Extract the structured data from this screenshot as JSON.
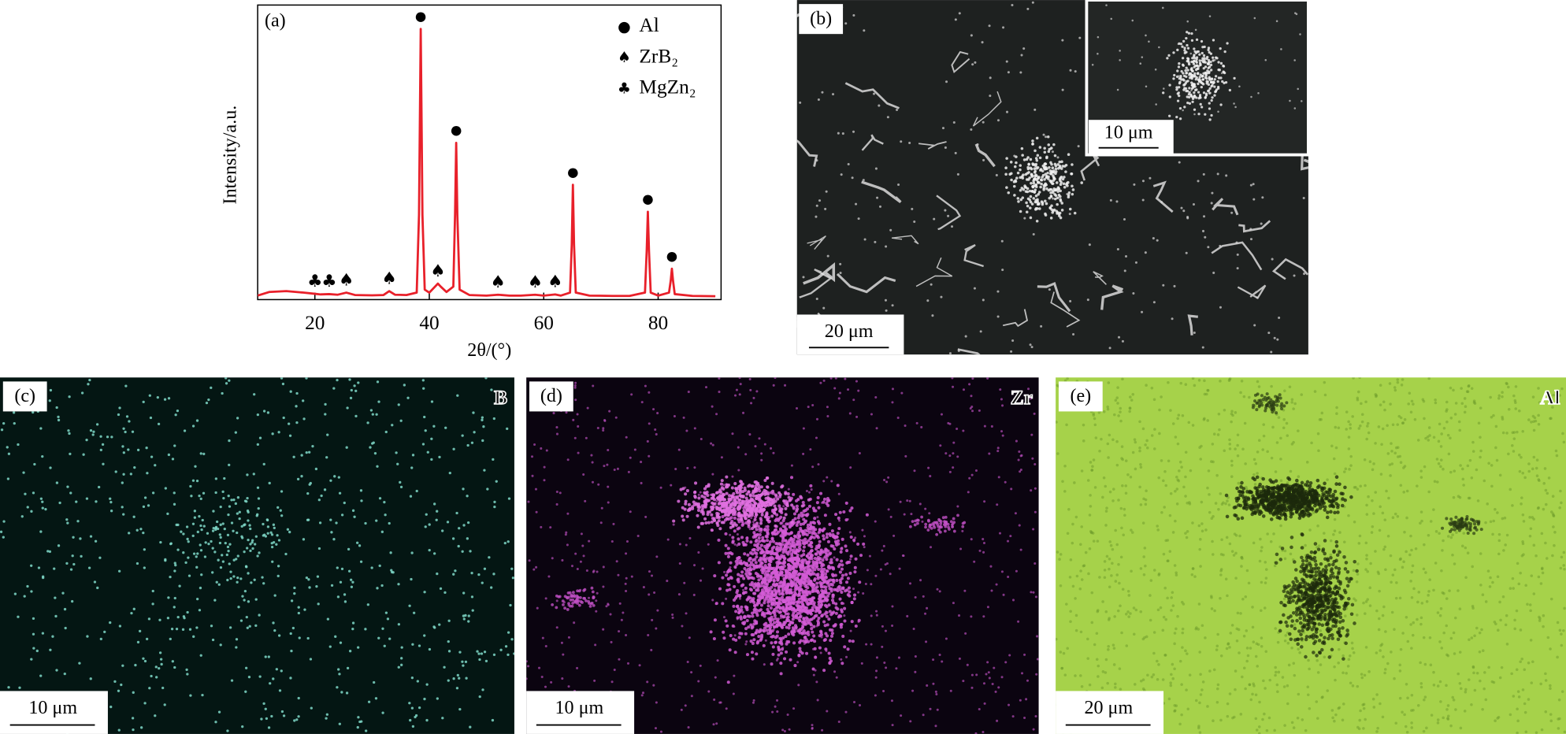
{
  "chart_data": {
    "type": "line",
    "panel_label": "(a)",
    "x_label": "2θ/(°)",
    "y_label": "Intensity/a.u.",
    "x": [
      10,
      12,
      15,
      18,
      20,
      21,
      22.5,
      24,
      25.5,
      27,
      30,
      32,
      33,
      34,
      36,
      37.8,
      38.2,
      38.5,
      38.8,
      39.2,
      40,
      41,
      41.5,
      42,
      43,
      44.2,
      44.5,
      44.7,
      44.9,
      45.3,
      47,
      50,
      52,
      54,
      56,
      58.5,
      60,
      62,
      63,
      64.6,
      64.9,
      65.1,
      65.3,
      65.6,
      68,
      72,
      75,
      77.7,
      78,
      78.2,
      78.4,
      78.7,
      80,
      81.9,
      82.2,
      82.4,
      82.6,
      82.9,
      86,
      90
    ],
    "values": [
      3.0,
      4.2,
      4.5,
      4.0,
      3.6,
      3.4,
      3.5,
      3.3,
      4.0,
      3.2,
      3.1,
      3.2,
      4.5,
      3.3,
      3.2,
      4.0,
      30,
      92,
      30,
      5,
      4.0,
      6.0,
      7.0,
      6.0,
      4.2,
      6,
      30,
      54,
      30,
      5,
      3.2,
      3.0,
      3.3,
      3.0,
      3.0,
      3.3,
      3.0,
      3.4,
      3.0,
      4,
      20,
      40,
      20,
      4,
      3.0,
      2.9,
      2.9,
      4,
      18,
      31,
      18,
      4,
      3.0,
      4,
      8,
      12,
      8,
      3.5,
      2.9,
      2.8
    ],
    "color": "#e8202a",
    "xlim": [
      10,
      91
    ],
    "xticks": [
      20,
      40,
      60,
      80
    ],
    "ylim": [
      0,
      100
    ],
    "legend": [
      {
        "symbol": "●",
        "label": "Al"
      },
      {
        "symbol": "♠",
        "label": "ZrB₂"
      },
      {
        "symbol": "♣",
        "label": "MgZn₂"
      }
    ],
    "peak_markers": [
      {
        "symbol": "♣",
        "x": 20
      },
      {
        "symbol": "♣",
        "x": 22.5
      },
      {
        "symbol": "♠",
        "x": 25.5
      },
      {
        "symbol": "♠",
        "x": 33
      },
      {
        "symbol": "●",
        "x": 38.5
      },
      {
        "symbol": "♠",
        "x": 41.5
      },
      {
        "symbol": "●",
        "x": 44.7
      },
      {
        "symbol": "♠",
        "x": 52
      },
      {
        "symbol": "♠",
        "x": 58.5
      },
      {
        "symbol": "♠",
        "x": 62
      },
      {
        "symbol": "●",
        "x": 65.1
      },
      {
        "symbol": "●",
        "x": 78.2
      },
      {
        "symbol": "●",
        "x": 82.4
      }
    ]
  },
  "panels": {
    "b": {
      "label": "(b)",
      "scale_bar": "20 μm",
      "inset_scale_bar": "10 μm"
    },
    "c": {
      "label": "(c)",
      "element": "B",
      "scale_bar": "10 μm"
    },
    "d": {
      "label": "(d)",
      "element": "Zr",
      "scale_bar": "10 μm"
    },
    "e": {
      "label": "(e)",
      "element": "Al",
      "scale_bar": "20 μm"
    }
  }
}
